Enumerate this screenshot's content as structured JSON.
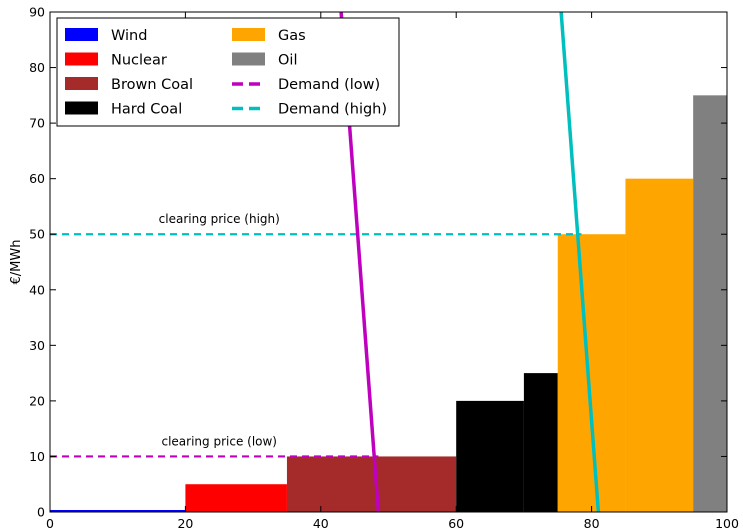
{
  "chart_data": {
    "type": "bar",
    "xlabel": "",
    "ylabel": "€/MWh",
    "xlim": [
      0,
      100
    ],
    "ylim": [
      0,
      90
    ],
    "xticks": [
      "0",
      "20",
      "40",
      "60",
      "80",
      "100"
    ],
    "yticks": [
      "0",
      "10",
      "20",
      "30",
      "40",
      "50",
      "60",
      "70",
      "80",
      "90"
    ],
    "grid": false,
    "legend_placement": "top-left",
    "series": [
      {
        "name": "Wind",
        "color": "#0000ff",
        "blocks": [
          {
            "x0": 0,
            "x1": 20,
            "price": 0
          }
        ]
      },
      {
        "name": "Nuclear",
        "color": "#ff0000",
        "blocks": [
          {
            "x0": 20,
            "x1": 35,
            "price": 5
          }
        ]
      },
      {
        "name": "Brown Coal",
        "color": "#a52a2a",
        "blocks": [
          {
            "x0": 35,
            "x1": 60,
            "price": 10
          }
        ]
      },
      {
        "name": "Hard Coal",
        "color": "#000000",
        "blocks": [
          {
            "x0": 60,
            "x1": 70,
            "price": 20
          },
          {
            "x0": 70,
            "x1": 75,
            "price": 25
          }
        ]
      },
      {
        "name": "Gas",
        "color": "#ffa500",
        "blocks": [
          {
            "x0": 75,
            "x1": 85,
            "price": 50
          },
          {
            "x0": 85,
            "x1": 95,
            "price": 60
          }
        ]
      },
      {
        "name": "Oil",
        "color": "#808080",
        "blocks": [
          {
            "x0": 95,
            "x1": 100,
            "price": 75
          }
        ]
      }
    ],
    "demand_lines": [
      {
        "name": "Demand (low)",
        "color": "#bf00bf",
        "points": [
          [
            43,
            90
          ],
          [
            48.5,
            0
          ]
        ]
      },
      {
        "name": "Demand (high)",
        "color": "#00bfbf",
        "points": [
          [
            75.5,
            90
          ],
          [
            81,
            0
          ]
        ]
      }
    ],
    "clearing_prices": [
      {
        "label": "clearing price (low)",
        "price": 10,
        "x_end": 48.5,
        "color": "#bf00bf"
      },
      {
        "label": "clearing price (high)",
        "price": 50,
        "x_end": 78.5,
        "color": "#00bfbf"
      }
    ],
    "legend": [
      {
        "label": "Wind",
        "color": "#0000ff",
        "kind": "patch"
      },
      {
        "label": "Nuclear",
        "color": "#ff0000",
        "kind": "patch"
      },
      {
        "label": "Brown Coal",
        "color": "#a52a2a",
        "kind": "patch"
      },
      {
        "label": "Hard Coal",
        "color": "#000000",
        "kind": "patch"
      },
      {
        "label": "Gas",
        "color": "#ffa500",
        "kind": "patch"
      },
      {
        "label": "Oil",
        "color": "#808080",
        "kind": "patch"
      },
      {
        "label": "Demand (low)",
        "color": "#bf00bf",
        "kind": "dash"
      },
      {
        "label": "Demand (high)",
        "color": "#00bfbf",
        "kind": "dash"
      }
    ]
  }
}
